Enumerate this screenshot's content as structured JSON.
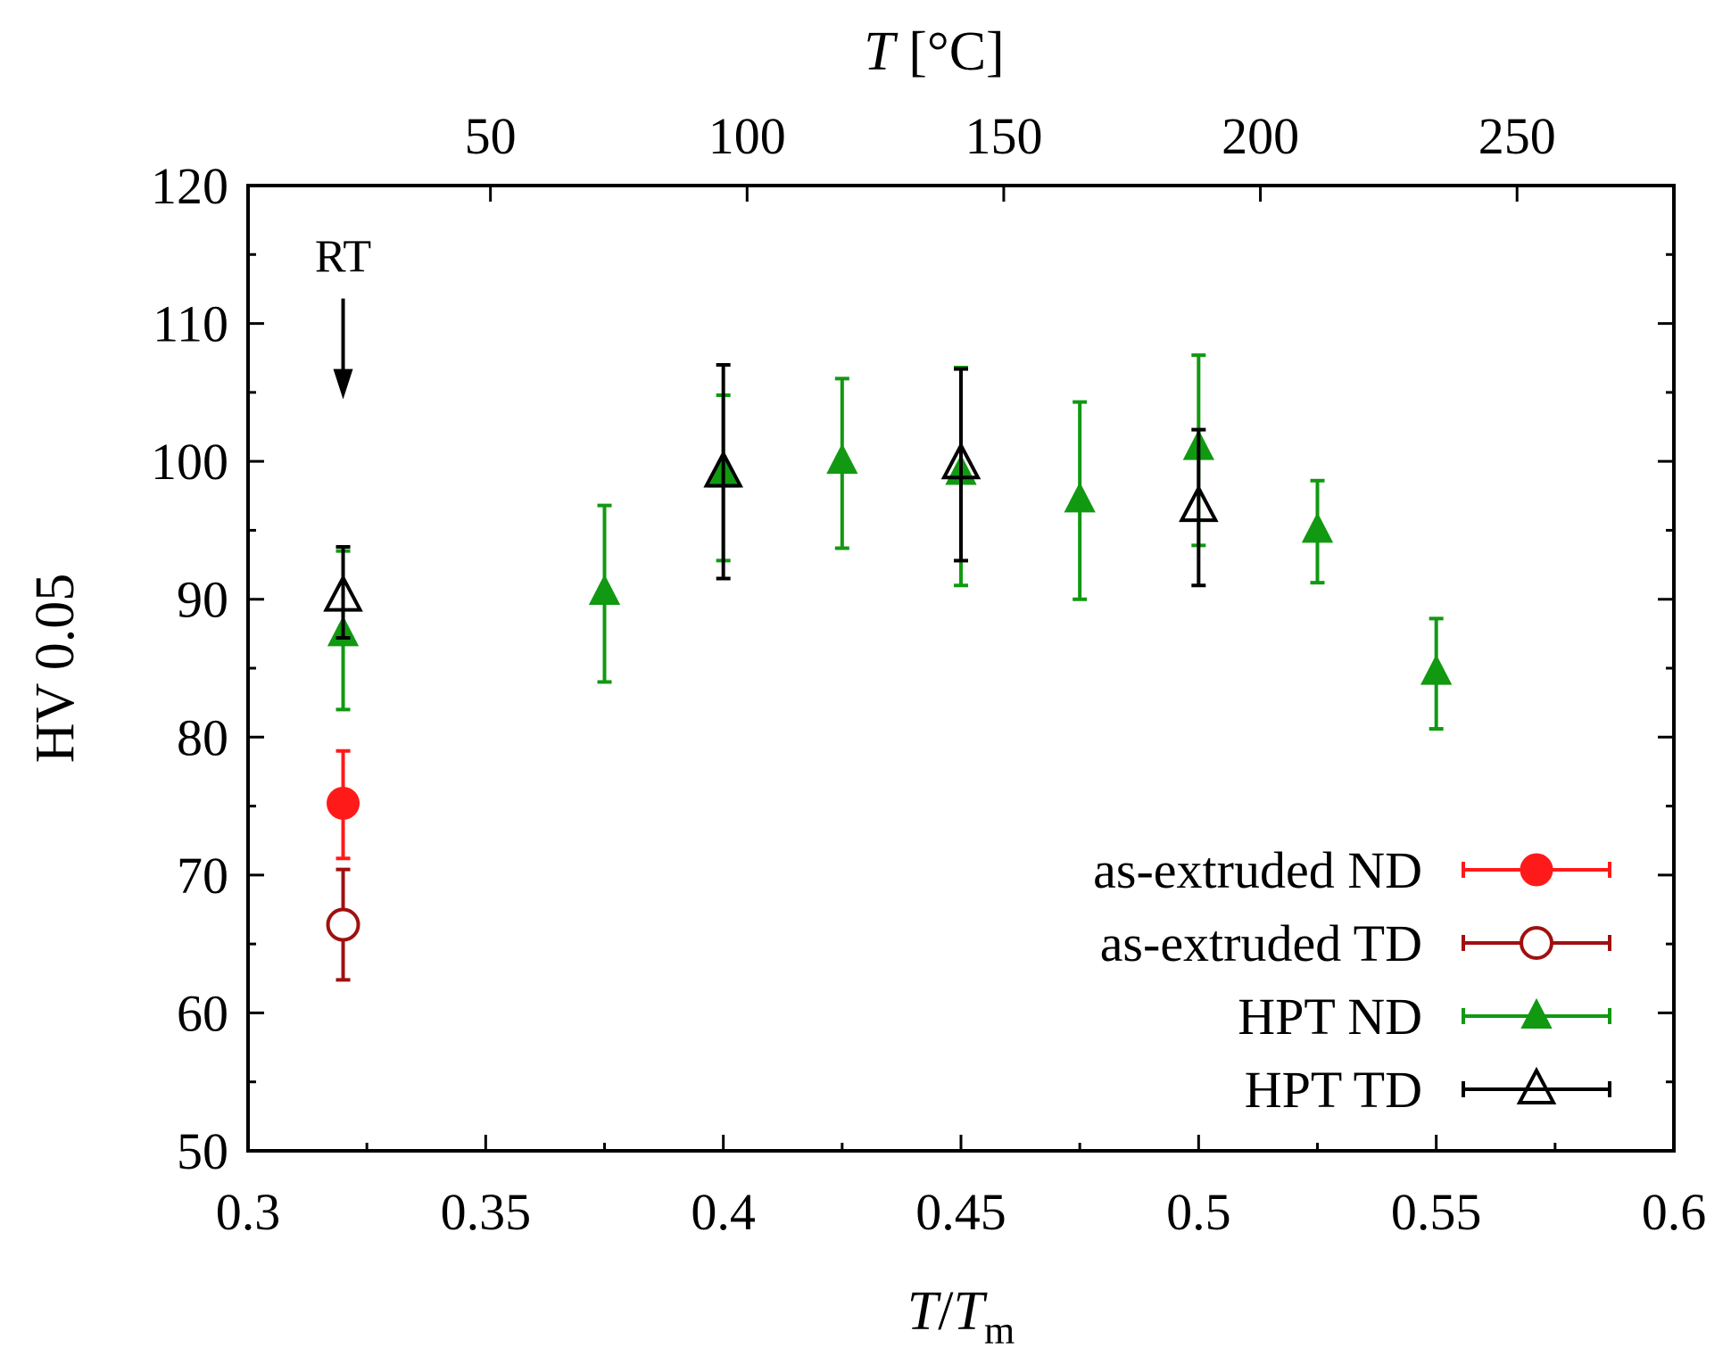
{
  "chart_data": {
    "type": "scatter",
    "title": "",
    "xlabel": "T/Tm",
    "xlabel_parts": {
      "base": "T",
      "slash": "/",
      "sub_base": "T",
      "sub": "m"
    },
    "ylabel": "HV 0.05",
    "top_xlabel": "T [°C]",
    "top_xlabel_parts": {
      "var": "T",
      "unit": " [°C]"
    },
    "xlim": [
      0.3,
      0.6
    ],
    "ylim": [
      50,
      120
    ],
    "x_ticks": [
      0.3,
      0.35,
      0.4,
      0.45,
      0.5,
      0.55,
      0.6
    ],
    "x_tick_labels": [
      "0.3",
      "0.35",
      "0.4",
      "0.45",
      "0.5",
      "0.55",
      "0.6"
    ],
    "y_ticks": [
      50,
      60,
      70,
      80,
      90,
      100,
      110,
      120
    ],
    "y_tick_labels": [
      "50",
      "60",
      "70",
      "80",
      "90",
      "100",
      "110",
      "120"
    ],
    "top_ticks": [
      {
        "celsius": 50,
        "x": 0.351,
        "label": "50"
      },
      {
        "celsius": 100,
        "x": 0.405,
        "label": "100"
      },
      {
        "celsius": 150,
        "x": 0.459,
        "label": "150"
      },
      {
        "celsius": 200,
        "x": 0.513,
        "label": "200"
      },
      {
        "celsius": 250,
        "x": 0.567,
        "label": "250"
      }
    ],
    "annotation": {
      "text": "RT",
      "x": 0.32,
      "y_from": 110,
      "y_to": 104.5
    },
    "legend_position": "bottom-right",
    "series": [
      {
        "name": "as-extruded ND",
        "color": "#ff1a1a",
        "marker": "filled-circle",
        "points": [
          {
            "x": 0.32,
            "y": 75.2,
            "ylow": 71.2,
            "yhigh": 79.0
          }
        ]
      },
      {
        "name": "as-extruded TD",
        "color": "#a01010",
        "marker": "open-circle",
        "points": [
          {
            "x": 0.32,
            "y": 66.4,
            "ylow": 62.4,
            "yhigh": 70.4
          }
        ]
      },
      {
        "name": "HPT ND",
        "color": "#119911",
        "marker": "filled-triangle",
        "points": [
          {
            "x": 0.32,
            "y": 87.5,
            "ylow": 82.0,
            "yhigh": 93.5
          },
          {
            "x": 0.375,
            "y": 90.5,
            "ylow": 84.0,
            "yhigh": 96.8
          },
          {
            "x": 0.4,
            "y": 99.0,
            "ylow": 92.8,
            "yhigh": 104.8
          },
          {
            "x": 0.425,
            "y": 100.0,
            "ylow": 93.7,
            "yhigh": 106.0
          },
          {
            "x": 0.45,
            "y": 99.2,
            "ylow": 91.0,
            "yhigh": 106.8
          },
          {
            "x": 0.475,
            "y": 97.2,
            "ylow": 90.0,
            "yhigh": 104.3
          },
          {
            "x": 0.5,
            "y": 101.0,
            "ylow": 93.9,
            "yhigh": 107.7
          },
          {
            "x": 0.525,
            "y": 95.0,
            "ylow": 91.2,
            "yhigh": 98.6
          },
          {
            "x": 0.55,
            "y": 84.7,
            "ylow": 80.6,
            "yhigh": 88.6
          }
        ]
      },
      {
        "name": "HPT TD",
        "color": "#000000",
        "marker": "open-triangle",
        "points": [
          {
            "x": 0.32,
            "y": 90.2,
            "ylow": 87.2,
            "yhigh": 93.8
          },
          {
            "x": 0.4,
            "y": 99.2,
            "ylow": 91.5,
            "yhigh": 107.0
          },
          {
            "x": 0.45,
            "y": 99.8,
            "ylow": 92.8,
            "yhigh": 106.7
          },
          {
            "x": 0.5,
            "y": 96.7,
            "ylow": 91.0,
            "yhigh": 102.3
          }
        ]
      }
    ]
  }
}
